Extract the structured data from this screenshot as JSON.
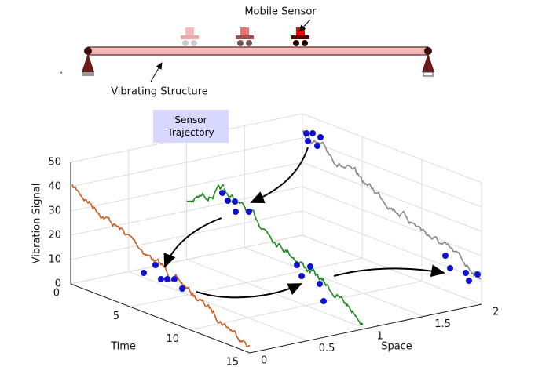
{
  "header": {
    "title": "Mobile Sensor",
    "structure_label": "Vibrating Structure",
    "mark": "."
  },
  "legend": {
    "label": "Sensor Trajectory"
  },
  "axes": {
    "z_label": "Vibration Signal",
    "z_ticks": [
      "0",
      "10",
      "20",
      "30",
      "40",
      "50"
    ],
    "time_label": "Time",
    "time_ticks": [
      "0",
      "5",
      "10",
      "15"
    ],
    "space_label": "Space",
    "space_ticks": [
      "0",
      "0.5",
      "1",
      "1.5",
      "2"
    ]
  }
}
